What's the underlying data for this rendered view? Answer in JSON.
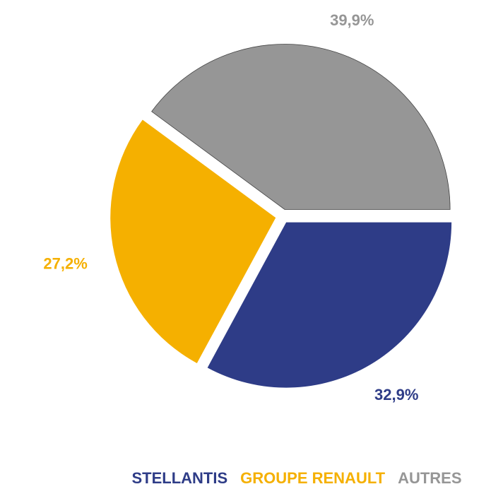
{
  "chart_data": {
    "type": "pie",
    "categories": [
      "STELLANTIS",
      "GROUPE RENAULT",
      "AUTRES"
    ],
    "values": [
      32.9,
      27.2,
      39.9
    ],
    "value_labels": [
      "32,9%",
      "27,2%",
      "39,9%"
    ],
    "colors": [
      "#2e3c87",
      "#f5b000",
      "#969696"
    ],
    "legend": "bottom"
  }
}
